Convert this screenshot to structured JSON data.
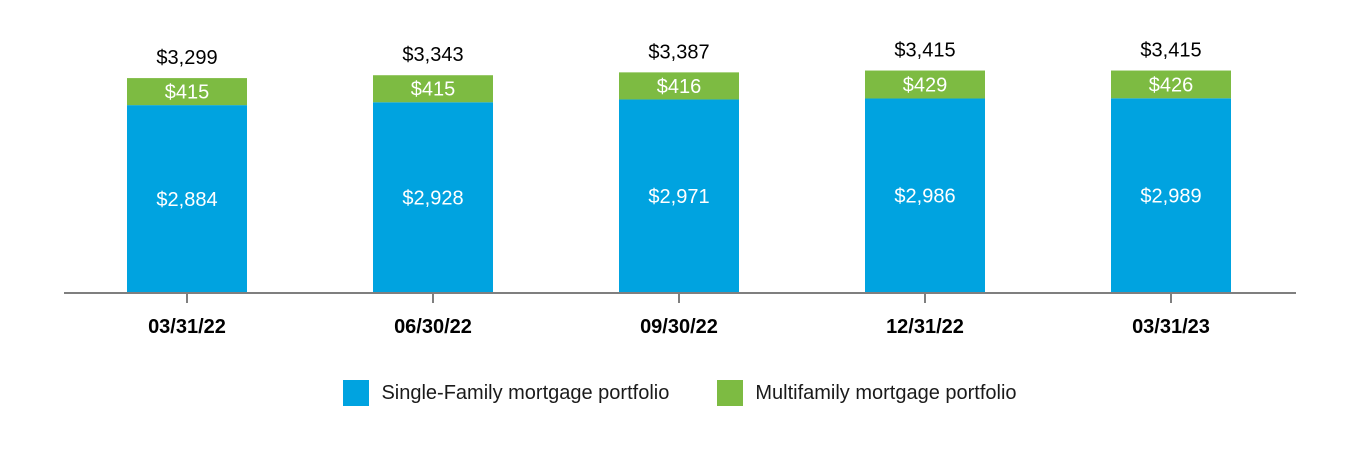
{
  "chart_data": {
    "type": "bar",
    "stacked": true,
    "categories": [
      "03/31/22",
      "06/30/22",
      "09/30/22",
      "12/31/22",
      "03/31/23"
    ],
    "series": [
      {
        "name": "Single-Family mortgage portfolio",
        "color": "#00A3E0",
        "values": [
          2884,
          2928,
          2971,
          2986,
          2989
        ],
        "labels": [
          "$2,884",
          "$2,928",
          "$2,971",
          "$2,986",
          "$2,989"
        ]
      },
      {
        "name": "Multifamily mortgage portfolio",
        "color": "#7DBB42",
        "values": [
          415,
          415,
          416,
          429,
          426
        ],
        "labels": [
          "$415",
          "$415",
          "$416",
          "$429",
          "$426"
        ]
      }
    ],
    "totals": [
      3299,
      3343,
      3387,
      3415,
      3415
    ],
    "total_labels": [
      "$3,299",
      "$3,343",
      "$3,387",
      "$3,415",
      "$3,415"
    ],
    "ylim": [
      0,
      3500
    ],
    "legend_position": "bottom-center",
    "grid": false
  }
}
